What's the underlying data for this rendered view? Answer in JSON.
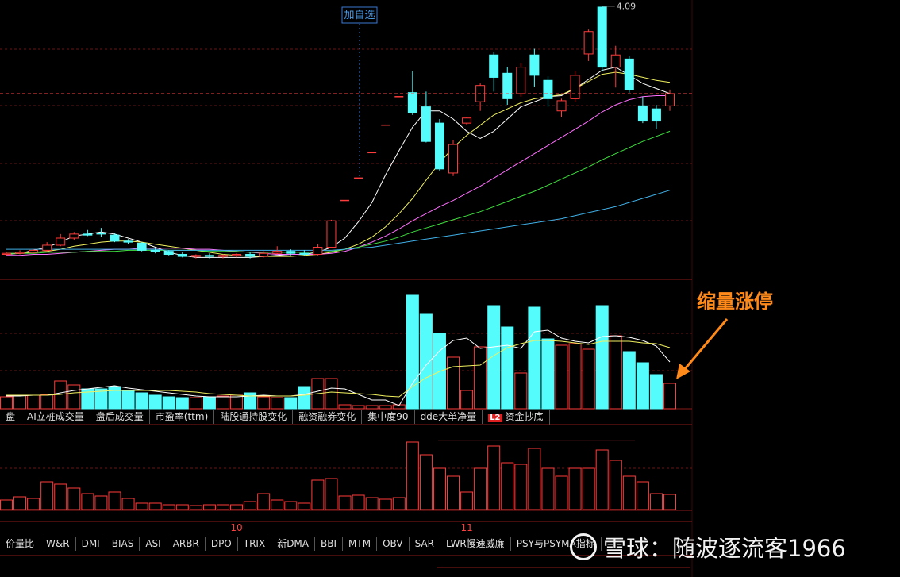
{
  "chart_data": [
    {
      "type": "candlestick",
      "categories": [
        null,
        null,
        null,
        null,
        null,
        null,
        null,
        null,
        null,
        null,
        null,
        null,
        null,
        null,
        null,
        null,
        null,
        "10",
        null,
        null,
        null,
        null,
        null,
        null,
        null,
        null,
        null,
        null,
        null,
        null,
        null,
        null,
        null,
        null,
        "11",
        null,
        null,
        null,
        null,
        null,
        null,
        null,
        null,
        null,
        null,
        null,
        null,
        null,
        null,
        null
      ],
      "open": [
        1.65,
        1.66,
        1.67,
        1.69,
        1.74,
        1.81,
        1.85,
        1.86,
        1.84,
        1.78,
        1.76,
        1.69,
        1.68,
        1.65,
        1.63,
        1.64,
        1.63,
        1.64,
        1.65,
        1.63,
        1.66,
        1.68,
        1.66,
        1.65,
        1.72,
        2.18,
        2.4,
        2.65,
        2.92,
        3.2,
        3.24,
        3.1,
        2.94,
        2.45,
        2.94,
        3.15,
        3.61,
        3.43,
        3.23,
        3.61,
        3.36,
        3.06,
        3.18,
        3.62,
        4.08,
        3.49,
        3.57,
        3.11,
        3.08,
        3.11
      ],
      "high": [
        1.67,
        1.69,
        1.7,
        1.77,
        1.85,
        1.87,
        1.89,
        1.91,
        1.86,
        1.8,
        1.77,
        1.71,
        1.69,
        1.67,
        1.65,
        1.66,
        1.65,
        1.66,
        1.67,
        1.68,
        1.73,
        1.7,
        1.69,
        1.75,
        1.99,
        2.18,
        2.4,
        2.65,
        2.92,
        3.2,
        3.45,
        3.25,
        2.98,
        2.77,
        3.0,
        3.33,
        3.64,
        3.49,
        3.53,
        3.67,
        3.4,
        3.18,
        3.45,
        3.86,
        4.09,
        3.7,
        3.6,
        3.2,
        3.12,
        3.27
      ],
      "low": [
        1.64,
        1.65,
        1.66,
        1.68,
        1.73,
        1.79,
        1.83,
        1.82,
        1.77,
        1.75,
        1.68,
        1.66,
        1.64,
        1.62,
        1.61,
        1.61,
        1.61,
        1.62,
        1.61,
        1.62,
        1.65,
        1.64,
        1.64,
        1.64,
        1.71,
        2.18,
        2.4,
        2.65,
        2.92,
        3.2,
        3.02,
        2.75,
        2.47,
        2.42,
        2.92,
        3.06,
        3.25,
        3.12,
        3.2,
        3.3,
        3.1,
        3.0,
        3.15,
        3.55,
        3.45,
        3.29,
        3.24,
        2.94,
        2.88,
        3.06
      ],
      "close": [
        1.66,
        1.67,
        1.69,
        1.74,
        1.81,
        1.85,
        1.84,
        1.85,
        1.78,
        1.77,
        1.69,
        1.68,
        1.65,
        1.63,
        1.64,
        1.63,
        1.64,
        1.65,
        1.63,
        1.66,
        1.68,
        1.66,
        1.65,
        1.72,
        1.98,
        2.18,
        2.4,
        2.65,
        2.92,
        3.2,
        3.04,
        2.76,
        2.49,
        2.73,
        2.99,
        3.31,
        3.39,
        3.18,
        3.49,
        3.41,
        3.18,
        3.16,
        3.41,
        3.84,
        3.49,
        3.61,
        3.27,
        2.96,
        2.96,
        3.23
      ],
      "up_color": "#ff3c3c",
      "down_color": "#54fcfc",
      "ylim": [
        1.42,
        4.15
      ],
      "max_label": 4.09,
      "annotation": "加自选",
      "ma_lines": [
        {
          "color": "#ffffff",
          "values": [
            1.65,
            1.66,
            1.69,
            1.72,
            1.77,
            1.83,
            1.85,
            1.87,
            1.85,
            1.81,
            1.77,
            1.72,
            1.67,
            1.64,
            1.62,
            1.62,
            1.62,
            1.62,
            1.62,
            1.63,
            1.64,
            1.65,
            1.65,
            1.67,
            1.72,
            1.81,
            1.97,
            2.16,
            2.43,
            2.67,
            2.9,
            3.06,
            3.06,
            2.98,
            2.86,
            2.79,
            2.86,
            2.98,
            3.1,
            3.15,
            3.2,
            3.21,
            3.28,
            3.37,
            3.46,
            3.49,
            3.41,
            3.33,
            3.28,
            3.23
          ]
        },
        {
          "color": "#f0f060",
          "values": [
            1.66,
            1.66,
            1.67,
            1.68,
            1.7,
            1.73,
            1.75,
            1.77,
            1.78,
            1.78,
            1.77,
            1.75,
            1.73,
            1.71,
            1.69,
            1.67,
            1.65,
            1.64,
            1.63,
            1.63,
            1.63,
            1.63,
            1.64,
            1.65,
            1.67,
            1.7,
            1.75,
            1.82,
            1.92,
            2.05,
            2.2,
            2.38,
            2.55,
            2.7,
            2.82,
            2.92,
            3.02,
            3.08,
            3.14,
            3.18,
            3.2,
            3.22,
            3.28,
            3.35,
            3.42,
            3.44,
            3.42,
            3.39,
            3.36,
            3.34
          ]
        },
        {
          "color": "#ff70ff",
          "values": [
            1.64,
            1.64,
            1.65,
            1.65,
            1.66,
            1.67,
            1.68,
            1.69,
            1.7,
            1.7,
            1.71,
            1.71,
            1.71,
            1.71,
            1.7,
            1.7,
            1.69,
            1.68,
            1.67,
            1.66,
            1.65,
            1.65,
            1.65,
            1.65,
            1.66,
            1.68,
            1.72,
            1.77,
            1.83,
            1.9,
            1.98,
            2.05,
            2.12,
            2.18,
            2.25,
            2.32,
            2.4,
            2.48,
            2.56,
            2.64,
            2.72,
            2.8,
            2.88,
            2.96,
            3.05,
            3.12,
            3.17,
            3.2,
            3.21,
            3.21
          ]
        },
        {
          "color": "#40e040",
          "values": [
            1.66,
            1.66,
            1.66,
            1.67,
            1.67,
            1.67,
            1.68,
            1.68,
            1.68,
            1.69,
            1.69,
            1.69,
            1.69,
            1.69,
            1.69,
            1.68,
            1.68,
            1.68,
            1.67,
            1.67,
            1.67,
            1.67,
            1.67,
            1.67,
            1.68,
            1.7,
            1.72,
            1.75,
            1.78,
            1.82,
            1.87,
            1.91,
            1.95,
            1.99,
            2.03,
            2.07,
            2.12,
            2.17,
            2.22,
            2.27,
            2.33,
            2.39,
            2.45,
            2.51,
            2.58,
            2.64,
            2.7,
            2.76,
            2.81,
            2.86
          ]
        },
        {
          "color": "#40b0e8",
          "values": [
            1.7,
            1.7,
            1.7,
            1.7,
            1.7,
            1.7,
            1.7,
            1.7,
            1.7,
            1.7,
            1.7,
            1.7,
            1.69,
            1.69,
            1.69,
            1.69,
            1.69,
            1.69,
            1.69,
            1.69,
            1.69,
            1.69,
            1.69,
            1.69,
            1.69,
            1.7,
            1.71,
            1.72,
            1.74,
            1.76,
            1.78,
            1.8,
            1.82,
            1.84,
            1.86,
            1.88,
            1.9,
            1.92,
            1.94,
            1.96,
            1.98,
            2.0,
            2.03,
            2.06,
            2.09,
            2.12,
            2.16,
            2.2,
            2.24,
            2.28
          ]
        }
      ]
    },
    {
      "type": "bar",
      "values": [
        15,
        17,
        17,
        18,
        35,
        30,
        25,
        25,
        28,
        22,
        20,
        17,
        15,
        14,
        14,
        15,
        16,
        17,
        20,
        15,
        14,
        14,
        28,
        38,
        38,
        5,
        4,
        4,
        4,
        5,
        143,
        120,
        95,
        65,
        23,
        78,
        130,
        103,
        45,
        128,
        88,
        80,
        82,
        75,
        130,
        92,
        72,
        58,
        43,
        32
      ],
      "ylim": [
        0,
        150
      ],
      "annotation": "缩量涨停",
      "ma_lines": [
        {
          "color": "#ffffff",
          "values": [
            16,
            16,
            17,
            17,
            20,
            23,
            25,
            27,
            29,
            26,
            24,
            22,
            20,
            18,
            16,
            15,
            15,
            15,
            16,
            17,
            16,
            16,
            18,
            22,
            26,
            25,
            18,
            11,
            11,
            4,
            32,
            55,
            73,
            86,
            89,
            76,
            78,
            80,
            76,
            97,
            99,
            89,
            85,
            83,
            91,
            92,
            90,
            86,
            79,
            59
          ]
        },
        {
          "color": "#f0f060",
          "values": [
            17,
            17,
            17,
            17,
            18,
            20,
            21,
            22,
            23,
            23,
            23,
            23,
            23,
            22,
            21,
            19,
            18,
            17,
            16,
            16,
            16,
            16,
            17,
            19,
            21,
            20,
            19,
            18,
            16,
            15,
            28,
            39,
            47,
            53,
            54,
            55,
            67,
            77,
            82,
            86,
            86,
            85,
            83,
            81,
            85,
            85,
            85,
            83,
            82,
            77
          ]
        }
      ]
    },
    {
      "type": "bar",
      "values": [
        12,
        16,
        14,
        35,
        32,
        27,
        20,
        17,
        22,
        14,
        8,
        8,
        6,
        6,
        5,
        6,
        6,
        6,
        10,
        20,
        12,
        10,
        8,
        37,
        39,
        17,
        18,
        15,
        13,
        15,
        85,
        69,
        52,
        42,
        22,
        52,
        80,
        59,
        57,
        77,
        52,
        42,
        52,
        52,
        75,
        62,
        42,
        35,
        20,
        19
      ],
      "ylim": [
        0,
        107
      ],
      "color": "#ff3c3c"
    }
  ],
  "tabs_upper": [
    "盘",
    "AI立桩成交量",
    "盘后成交量",
    "市盈率(ttm)",
    "陆股通持股变化",
    "融资融券变化",
    "集中度90",
    "dde大单净量"
  ],
  "l2_badge": "L2",
  "l2_tab": "资金抄底",
  "tabs_lower": [
    "价量比",
    "W&R",
    "DMI",
    "BIAS",
    "ASI",
    "ARBR",
    "DPO",
    "TRIX",
    "新DMA",
    "BBI",
    "MTM",
    "OBV",
    "SAR",
    "LWR慢速威廉",
    "PSY与PSYMA指标"
  ],
  "watermark": "雪球：随波逐流客1966"
}
